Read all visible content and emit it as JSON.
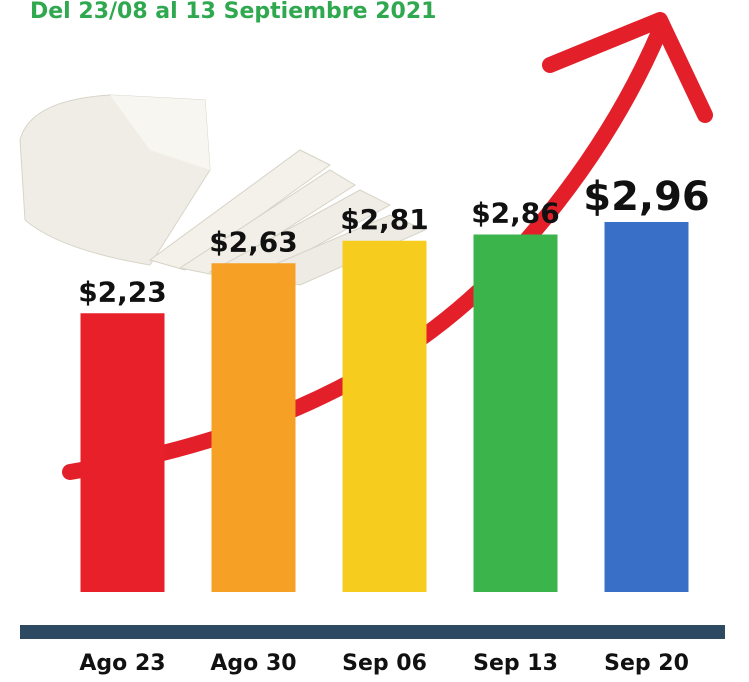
{
  "chart_data": {
    "type": "bar",
    "subtitle": "Del 23/08 al 13 Septiembre 2021",
    "categories": [
      "Ago 23",
      "Ago 30",
      "Sep 06",
      "Sep 13",
      "Sep 20"
    ],
    "values": [
      2.23,
      2.63,
      2.81,
      2.86,
      2.96
    ],
    "value_labels": [
      "$2,23",
      "$2,63",
      "$2,81",
      "$2,86",
      "$2,96"
    ],
    "colors": [
      "#e8202a",
      "#f6a125",
      "#f6cd1f",
      "#3bb54b",
      "#3a6fc8"
    ]
  }
}
